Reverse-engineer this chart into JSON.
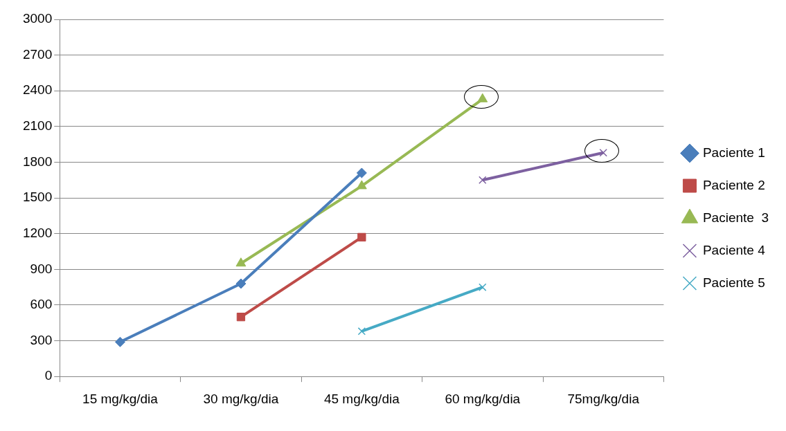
{
  "chart_data": {
    "type": "line",
    "categories": [
      "15 mg/kg/dia",
      "30 mg/kg/dia",
      "45 mg/kg/dia",
      "60 mg/kg/dia",
      "75mg/kg/dia"
    ],
    "series": [
      {
        "name": "Paciente 1",
        "color": "#4a7ebb",
        "marker": "diamond",
        "values": [
          290,
          780,
          1710,
          null,
          null
        ]
      },
      {
        "name": "Paciente 2",
        "color": "#be4b48",
        "marker": "square",
        "values": [
          null,
          500,
          1170,
          null,
          null
        ]
      },
      {
        "name": "Paciente  3",
        "color": "#98b954",
        "marker": "triangle",
        "values": [
          null,
          950,
          1600,
          2330,
          null
        ]
      },
      {
        "name": "Paciente 4",
        "color": "#7d60a0",
        "marker": "cross",
        "values": [
          null,
          null,
          null,
          1650,
          1880
        ]
      },
      {
        "name": "Paciente 5",
        "color": "#46aac5",
        "marker": "cross",
        "values": [
          null,
          null,
          380,
          750,
          null
        ]
      }
    ],
    "ylim": [
      0,
      3000
    ],
    "yticks": [
      0,
      300,
      600,
      900,
      1200,
      1500,
      1800,
      2100,
      2400,
      2700,
      3000
    ],
    "grid": "y",
    "legend": "right"
  }
}
